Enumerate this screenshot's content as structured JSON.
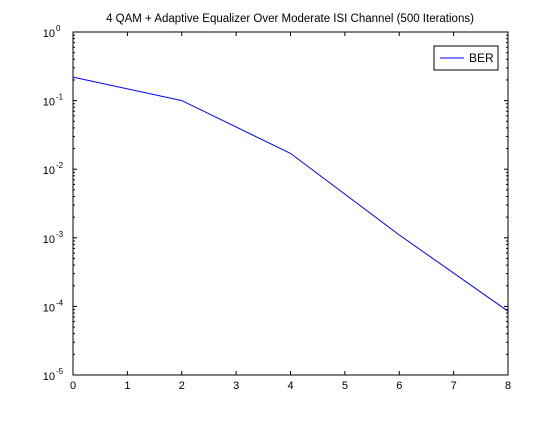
{
  "chart_data": {
    "type": "line",
    "title": "4 QAM + Adaptive Equalizer Over Moderate ISI Channel (500 Iterations)",
    "xlabel": "",
    "ylabel": "",
    "xlim": [
      0,
      8
    ],
    "ylim": [
      1e-05,
      1
    ],
    "yscale": "log",
    "grid": false,
    "legend": "top-right",
    "x_ticks": [
      "0",
      "1",
      "2",
      "3",
      "4",
      "5",
      "6",
      "7",
      "8"
    ],
    "y_ticks": [
      {
        "value": 1,
        "base": "10",
        "exp": "0"
      },
      {
        "value": 0.1,
        "base": "10",
        "exp": "-1"
      },
      {
        "value": 0.01,
        "base": "10",
        "exp": "-2"
      },
      {
        "value": 0.001,
        "base": "10",
        "exp": "-3"
      },
      {
        "value": 0.0001,
        "base": "10",
        "exp": "-4"
      },
      {
        "value": 1e-05,
        "base": "10",
        "exp": "-5"
      }
    ],
    "series": [
      {
        "name": "BER",
        "color": "#0000ff",
        "x": [
          0,
          2,
          4,
          6,
          8
        ],
        "values": [
          0.22,
          0.1,
          0.017,
          0.0011,
          8.5e-05
        ]
      }
    ]
  }
}
